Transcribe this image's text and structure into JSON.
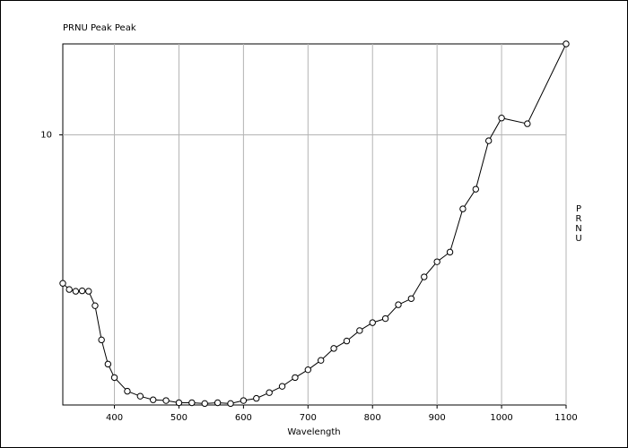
{
  "chart_data": {
    "type": "line",
    "title": "PRNU Peak Peak",
    "xlabel": "Wavelength",
    "ylabel": "PRNU",
    "x": [
      320,
      330,
      340,
      350,
      360,
      370,
      380,
      390,
      400,
      420,
      440,
      460,
      480,
      500,
      520,
      540,
      560,
      580,
      600,
      620,
      640,
      660,
      680,
      700,
      720,
      740,
      760,
      780,
      800,
      820,
      840,
      860,
      880,
      900,
      920,
      940,
      960,
      980,
      1000,
      1040,
      1100
    ],
    "series": [
      {
        "name": "PRNU",
        "color": "#000000",
        "values": [
          5.16,
          5.02,
          4.98,
          4.99,
          4.98,
          4.67,
          4.01,
          3.6,
          3.39,
          3.19,
          3.12,
          3.07,
          3.06,
          3.03,
          3.03,
          3.02,
          3.03,
          3.02,
          3.06,
          3.09,
          3.17,
          3.26,
          3.39,
          3.51,
          3.66,
          3.86,
          3.99,
          4.18,
          4.33,
          4.41,
          4.69,
          4.82,
          5.31,
          5.68,
          5.93,
          7.19,
          7.85,
          9.74,
          10.78,
          10.51,
          15
        ]
      }
    ],
    "xlim": [
      320,
      1100
    ],
    "xticks": [
      400,
      500,
      600,
      700,
      800,
      900,
      1000,
      1100
    ],
    "ylim": [
      3,
      15
    ],
    "yticks": [
      10
    ],
    "log_y": true,
    "grid": true
  }
}
